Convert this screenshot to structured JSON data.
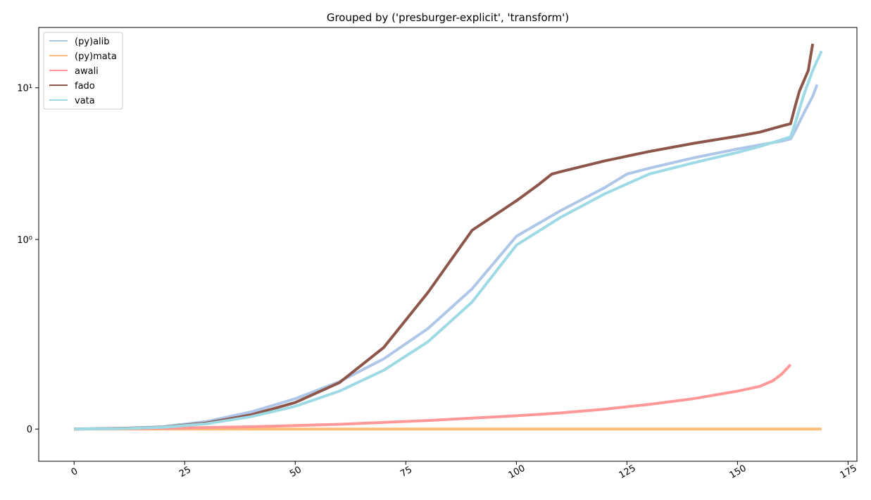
{
  "chart_data": {
    "type": "line",
    "title": "Grouped by ('presburger-explicit', 'transform')",
    "xlabel": "",
    "ylabel": "",
    "yscale": "symlog",
    "xlim": [
      -8,
      177
    ],
    "ylim": [
      -0.17,
      25
    ],
    "grid": false,
    "legend_position": "upper left",
    "x_ticks": [
      0,
      25,
      50,
      75,
      100,
      125,
      150,
      175
    ],
    "x_tick_labels": [
      "0",
      "25",
      "50",
      "75",
      "100",
      "125",
      "150",
      "175"
    ],
    "y_ticks": [
      0,
      1,
      10
    ],
    "y_tick_labels": [
      "0",
      "10⁰",
      "10¹"
    ],
    "series": [
      {
        "name": "(py)alib",
        "color": "#aec7e8",
        "points": [
          [
            0,
            0
          ],
          [
            10,
            0.003
          ],
          [
            20,
            0.012
          ],
          [
            30,
            0.04
          ],
          [
            40,
            0.09
          ],
          [
            50,
            0.16
          ],
          [
            60,
            0.25
          ],
          [
            70,
            0.37
          ],
          [
            80,
            0.53
          ],
          [
            90,
            0.74
          ],
          [
            100,
            1.05
          ],
          [
            110,
            1.55
          ],
          [
            120,
            2.2
          ],
          [
            125,
            2.7
          ],
          [
            130,
            2.95
          ],
          [
            140,
            3.45
          ],
          [
            150,
            3.95
          ],
          [
            155,
            4.2
          ],
          [
            160,
            4.45
          ],
          [
            162,
            4.6
          ],
          [
            163,
            5.2
          ],
          [
            165,
            6.8
          ],
          [
            167,
            8.8
          ],
          [
            168,
            10.5
          ]
        ]
      },
      {
        "name": "(py)mata",
        "color": "#ffbb78",
        "points": [
          [
            0,
            0
          ],
          [
            50,
            0
          ],
          [
            100,
            0
          ],
          [
            150,
            0
          ],
          [
            169,
            0
          ]
        ]
      },
      {
        "name": "awali",
        "color": "#ff9896",
        "points": [
          [
            0,
            0
          ],
          [
            20,
            0.004
          ],
          [
            40,
            0.012
          ],
          [
            60,
            0.025
          ],
          [
            80,
            0.045
          ],
          [
            100,
            0.07
          ],
          [
            110,
            0.085
          ],
          [
            120,
            0.105
          ],
          [
            130,
            0.13
          ],
          [
            140,
            0.16
          ],
          [
            150,
            0.2
          ],
          [
            155,
            0.225
          ],
          [
            158,
            0.255
          ],
          [
            160,
            0.29
          ],
          [
            162,
            0.34
          ]
        ]
      },
      {
        "name": "fado",
        "color": "#8c564b",
        "points": [
          [
            0,
            0
          ],
          [
            10,
            0.003
          ],
          [
            20,
            0.01
          ],
          [
            30,
            0.032
          ],
          [
            40,
            0.075
          ],
          [
            50,
            0.14
          ],
          [
            60,
            0.245
          ],
          [
            70,
            0.43
          ],
          [
            80,
            0.72
          ],
          [
            90,
            1.15
          ],
          [
            100,
            1.8
          ],
          [
            105,
            2.3
          ],
          [
            108,
            2.7
          ],
          [
            110,
            2.8
          ],
          [
            120,
            3.3
          ],
          [
            130,
            3.8
          ],
          [
            140,
            4.3
          ],
          [
            150,
            4.8
          ],
          [
            155,
            5.1
          ],
          [
            160,
            5.6
          ],
          [
            162,
            5.8
          ],
          [
            163,
            7.5
          ],
          [
            164,
            9.5
          ],
          [
            166,
            13
          ],
          [
            167,
            19.5
          ]
        ]
      },
      {
        "name": "vata",
        "color": "#9edae5",
        "points": [
          [
            0,
            0
          ],
          [
            10,
            0.002
          ],
          [
            20,
            0.009
          ],
          [
            30,
            0.028
          ],
          [
            40,
            0.065
          ],
          [
            50,
            0.12
          ],
          [
            60,
            0.2
          ],
          [
            70,
            0.31
          ],
          [
            80,
            0.46
          ],
          [
            90,
            0.67
          ],
          [
            100,
            0.97
          ],
          [
            110,
            1.4
          ],
          [
            120,
            2.0
          ],
          [
            130,
            2.7
          ],
          [
            140,
            3.2
          ],
          [
            150,
            3.75
          ],
          [
            155,
            4.1
          ],
          [
            160,
            4.55
          ],
          [
            162,
            4.75
          ],
          [
            163,
            5.8
          ],
          [
            165,
            9
          ],
          [
            167,
            13
          ],
          [
            169,
            17.5
          ]
        ]
      }
    ]
  }
}
